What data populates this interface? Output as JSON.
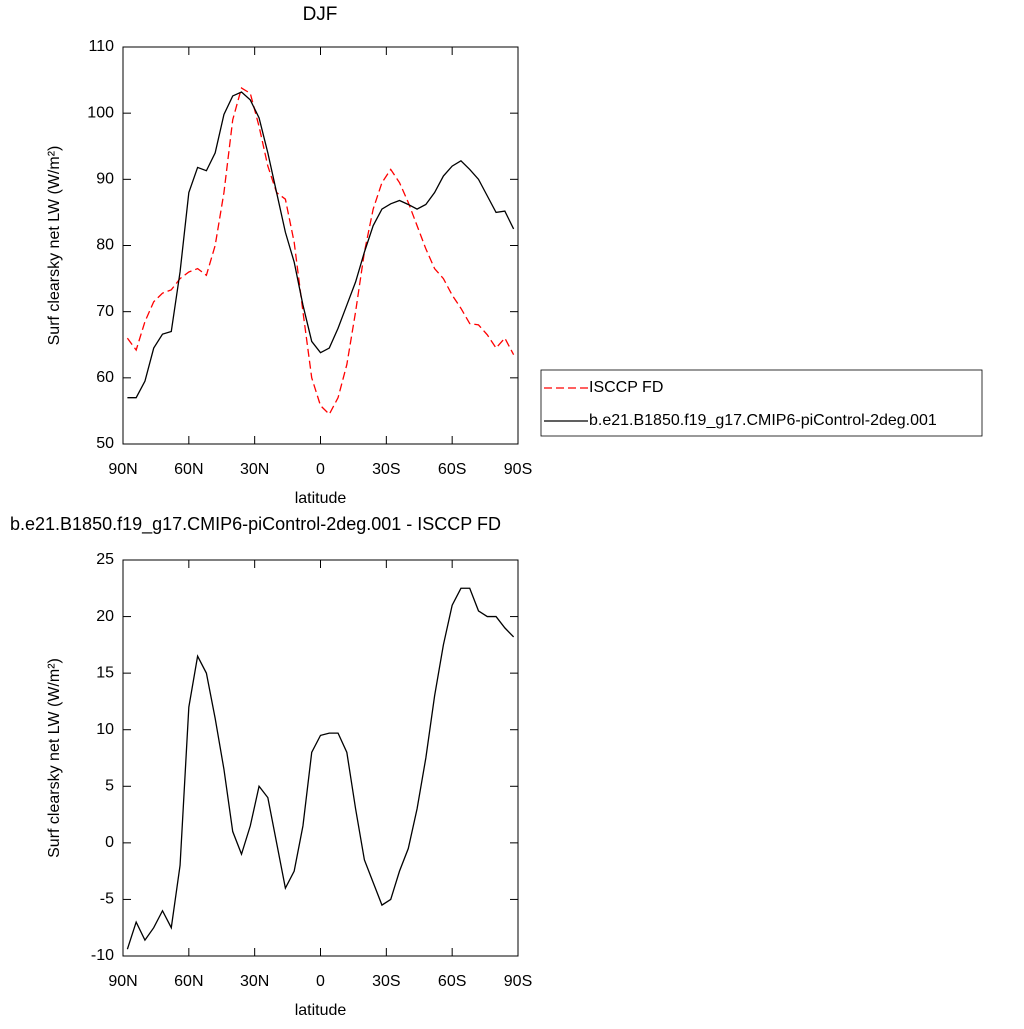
{
  "chart_data": [
    {
      "type": "line",
      "title": "DJF",
      "xlabel": "latitude",
      "ylabel": "Surf clearsky net LW (W/m²)",
      "x": [
        88,
        84,
        80,
        76,
        72,
        68,
        64,
        60,
        56,
        52,
        48,
        44,
        40,
        36,
        32,
        28,
        24,
        20,
        16,
        12,
        8,
        4,
        0,
        -4,
        -8,
        -12,
        -16,
        -20,
        -24,
        -28,
        -32,
        -36,
        -40,
        -44,
        -48,
        -52,
        -56,
        -60,
        -64,
        -68,
        -72,
        -76,
        -80,
        -84,
        -88
      ],
      "series": [
        {
          "name": "ISCCP FD",
          "color": "#ff0000",
          "line_style": "dashed",
          "values": [
            66,
            64.2,
            68.5,
            71.5,
            72.8,
            73.3,
            75,
            76,
            76.5,
            75.5,
            80,
            88,
            99,
            103.8,
            103,
            98,
            92,
            88,
            87,
            80.5,
            70,
            60,
            55.8,
            54.5,
            57,
            62,
            70,
            79,
            85.5,
            89.5,
            91.5,
            89.5,
            86.5,
            83,
            79.5,
            76.5,
            75,
            72.5,
            70.5,
            68.2,
            68,
            66.5,
            64.5,
            66,
            63.5
          ]
        },
        {
          "name": "b.e21.B1850.f19_g17.CMIP6-piControl-2deg.001",
          "color": "#000000",
          "line_style": "solid",
          "values": [
            57,
            57,
            59.5,
            64.5,
            66.6,
            67,
            76,
            88,
            91.8,
            91.3,
            94,
            99.8,
            102.6,
            103.2,
            102,
            99.3,
            94,
            88,
            82,
            77.5,
            71,
            65.5,
            63.8,
            64.5,
            67.5,
            71,
            74.5,
            79,
            83,
            85.5,
            86.3,
            86.8,
            86.2,
            85.5,
            86.2,
            88,
            90.5,
            92,
            92.8,
            91.5,
            90,
            87.5,
            85,
            85.2,
            82.5
          ]
        }
      ],
      "xlim": [
        90,
        -90
      ],
      "xticks": [
        {
          "value": 90,
          "label": "90N"
        },
        {
          "value": 60,
          "label": "60N"
        },
        {
          "value": 30,
          "label": "30N"
        },
        0,
        {
          "value": -30,
          "label": "30S"
        },
        {
          "value": -60,
          "label": "60S"
        },
        {
          "value": -90,
          "label": "90S"
        }
      ],
      "ylim": [
        50,
        110
      ],
      "yticks": [
        50,
        60,
        70,
        80,
        90,
        100,
        110
      ],
      "legend": "outside right"
    },
    {
      "type": "line",
      "title": "b.e21.B1850.f19_g17.CMIP6-piControl-2deg.001 - ISCCP FD",
      "xlabel": "latitude",
      "ylabel": "Surf clearsky net LW (W/m²)",
      "x": [
        88,
        84,
        80,
        76,
        72,
        68,
        64,
        60,
        56,
        52,
        48,
        44,
        40,
        36,
        32,
        28,
        24,
        20,
        16,
        12,
        8,
        4,
        0,
        -4,
        -8,
        -12,
        -16,
        -20,
        -24,
        -28,
        -32,
        -36,
        -40,
        -44,
        -48,
        -52,
        -56,
        -60,
        -64,
        -68,
        -72,
        -76,
        -80,
        -84,
        -88
      ],
      "series": [
        {
          "color": "#000000",
          "line_style": "solid",
          "values": [
            -9.4,
            -7,
            -8.6,
            -7.5,
            -6,
            -7.5,
            -2,
            12,
            16.5,
            15,
            11,
            6.5,
            1,
            -1,
            1.5,
            5,
            4,
            0,
            -4,
            -2.5,
            1.5,
            8,
            9.5,
            9.7,
            9.7,
            8,
            3,
            -1.5,
            -3.5,
            -5.5,
            -5,
            -2.5,
            -0.5,
            3,
            7.5,
            13,
            17.5,
            21,
            22.5,
            22.5,
            20.5,
            20,
            20,
            19,
            18.2
          ]
        }
      ],
      "xlim": [
        90,
        -90
      ],
      "xticks": [
        {
          "value": 90,
          "label": "90N"
        },
        {
          "value": 60,
          "label": "60N"
        },
        {
          "value": 30,
          "label": "30N"
        },
        0,
        {
          "value": -30,
          "label": "30S"
        },
        {
          "value": -60,
          "label": "60S"
        },
        {
          "value": -90,
          "label": "90S"
        }
      ],
      "ylim": [
        -10,
        25
      ],
      "yticks": [
        -10,
        -5,
        0,
        5,
        10,
        15,
        20,
        25
      ]
    }
  ]
}
